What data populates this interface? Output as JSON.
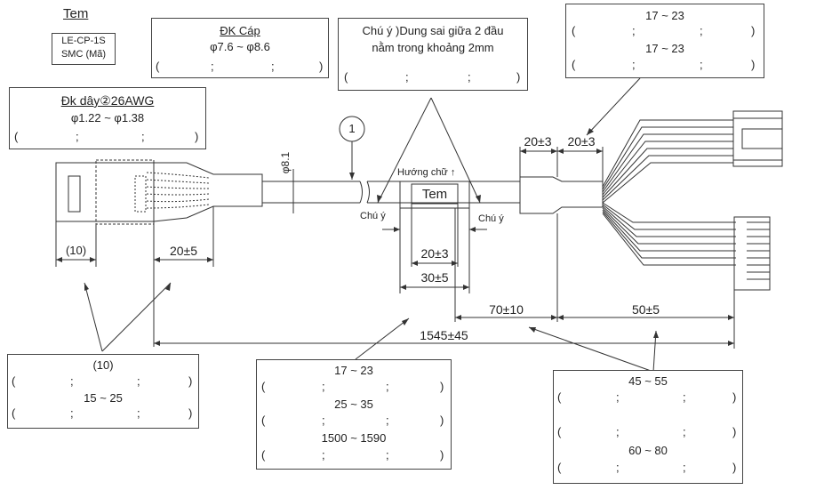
{
  "label_tag": {
    "title": "Tem",
    "lines": [
      "LE-CP-1S",
      "SMC (Mã)"
    ]
  },
  "cable_spec": {
    "title": "ĐK Cáp",
    "value": "φ7.6 ~ φ8.6"
  },
  "tolerance_note": {
    "line1": "Chú ý )Dung sai giữa 2 đầu",
    "line2": "nằm trong khoảng 2mm"
  },
  "connector_top_box": {
    "row1": "17 ~ 23",
    "row2": "17 ~ 23"
  },
  "wire_spec": {
    "title": "Đk dây②26AWG",
    "value": "φ1.22 ~ φ1.38"
  },
  "bottom_left_box": {
    "row1": "(10)",
    "row2": "15 ~ 25"
  },
  "bottom_center_box": {
    "row1": "17 ~ 23",
    "row2": "25 ~ 35",
    "row3": "1500 ~ 1590"
  },
  "bottom_right_box": {
    "row1": "45 ~ 55",
    "row2": "60 ~ 80"
  },
  "placeholders": {
    "paren_open": "(",
    "paren_close": ")",
    "semicolon": ";"
  },
  "drawing": {
    "diameter_label": "φ8.1",
    "item_number": "1",
    "direction_label": "Hướng chữ ↑",
    "tem_label": "Tem",
    "note_left": "Chú ý",
    "note_right": "Chú ý",
    "dim_10": "(10)",
    "dim_20_5": "20±5",
    "dim_20_3_center": "20±3",
    "dim_30_5": "30±5",
    "dim_70_10": "70±10",
    "dim_50_5": "50±5",
    "dim_1545_45": "1545±45",
    "dim_20_3_a": "20±3",
    "dim_20_3_b": "20±3"
  }
}
